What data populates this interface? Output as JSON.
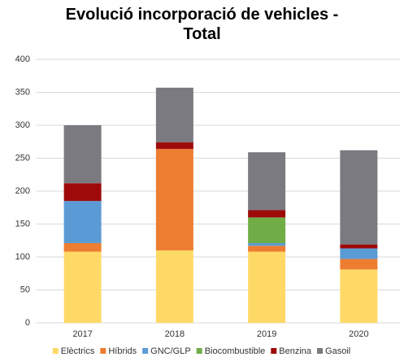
{
  "chart_data": {
    "type": "stacked_bar",
    "title": "Evolució incorporació de vehicles - Total",
    "categories": [
      "2017",
      "2018",
      "2019",
      "2020"
    ],
    "series": [
      {
        "name": "Elèctrics",
        "color": "#ffd966",
        "values": [
          108,
          110,
          108,
          81
        ]
      },
      {
        "name": "Híbrids",
        "color": "#ed7d31",
        "values": [
          13,
          154,
          9,
          16
        ]
      },
      {
        "name": "GNC/GLP",
        "color": "#5b9bd5",
        "values": [
          64,
          0,
          4,
          16
        ]
      },
      {
        "name": "Biocombustible",
        "color": "#70ad47",
        "values": [
          0,
          0,
          39,
          0
        ]
      },
      {
        "name": "Benzina",
        "color": "#9e0a0a",
        "values": [
          27,
          10,
          11,
          6
        ]
      },
      {
        "name": "Gasoil",
        "color": "#7b7a80",
        "values": [
          88,
          83,
          88,
          143
        ]
      }
    ],
    "ylim": [
      0,
      400
    ],
    "yticks": [
      0,
      50,
      100,
      150,
      200,
      250,
      300,
      350,
      400
    ],
    "grid": true,
    "legend": "bottom"
  }
}
